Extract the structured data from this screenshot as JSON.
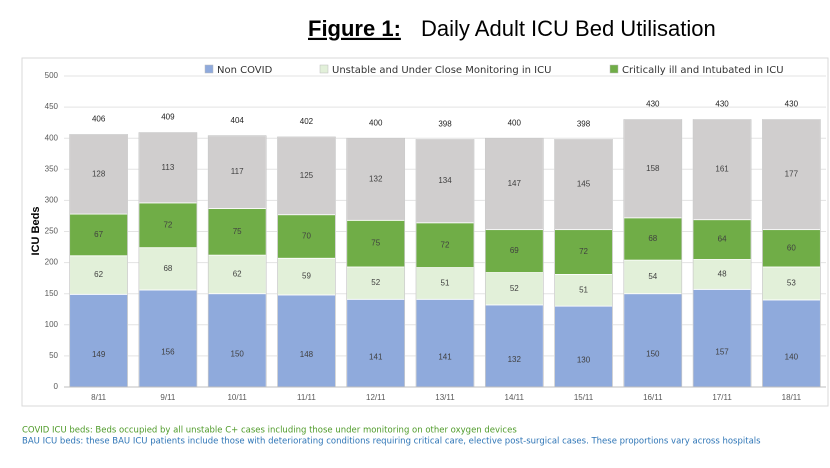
{
  "chart_data": {
    "type": "stacked_bar",
    "title_label": "Figure 1:",
    "title": "Daily Adult ICU Bed Utilisation",
    "y_label": "ICU Beds",
    "categories": [
      "8/11",
      "9/11",
      "10/11",
      "11/11",
      "12/11",
      "13/11",
      "14/11",
      "15/11",
      "16/11",
      "17/11",
      "18/11"
    ],
    "series": [
      {
        "name": "Non COVID",
        "color": "#8faadc",
        "values": [
          149,
          156,
          150,
          148,
          141,
          141,
          132,
          130,
          150,
          157,
          140
        ]
      },
      {
        "name": "Unstable and Under Close Monitoring in ICU",
        "color": "#e2f0d9",
        "values": [
          62,
          68,
          62,
          59,
          52,
          51,
          52,
          51,
          54,
          48,
          53
        ]
      },
      {
        "name": "Critically ill and Intubated in ICU",
        "color": "#70ad47",
        "values": [
          67,
          72,
          75,
          70,
          75,
          72,
          69,
          72,
          68,
          64,
          60
        ]
      },
      {
        "color": "#d0cece",
        "values": [
          128,
          113,
          117,
          125,
          132,
          134,
          147,
          145,
          158,
          161,
          177
        ]
      }
    ],
    "totals": [
      406,
      409,
      404,
      402,
      400,
      398,
      400,
      398,
      430,
      430,
      430
    ],
    "ylim": [
      0,
      500
    ],
    "yticks": [
      0,
      50,
      100,
      150,
      200,
      250,
      300,
      350,
      400,
      450,
      500
    ],
    "grid": true,
    "legend": "top",
    "notes": [
      {
        "text": "COVID ICU beds: Beds occupied by all unstable C+ cases including those under monitoring on other oxygen devices",
        "color": "#4e9a28"
      },
      {
        "text": "BAU ICU beds: these BAU ICU patients include those with deteriorating conditions requiring critical care, elective post-surgical cases. These proportions vary across hospitals",
        "color": "#2e75b6"
      }
    ]
  }
}
